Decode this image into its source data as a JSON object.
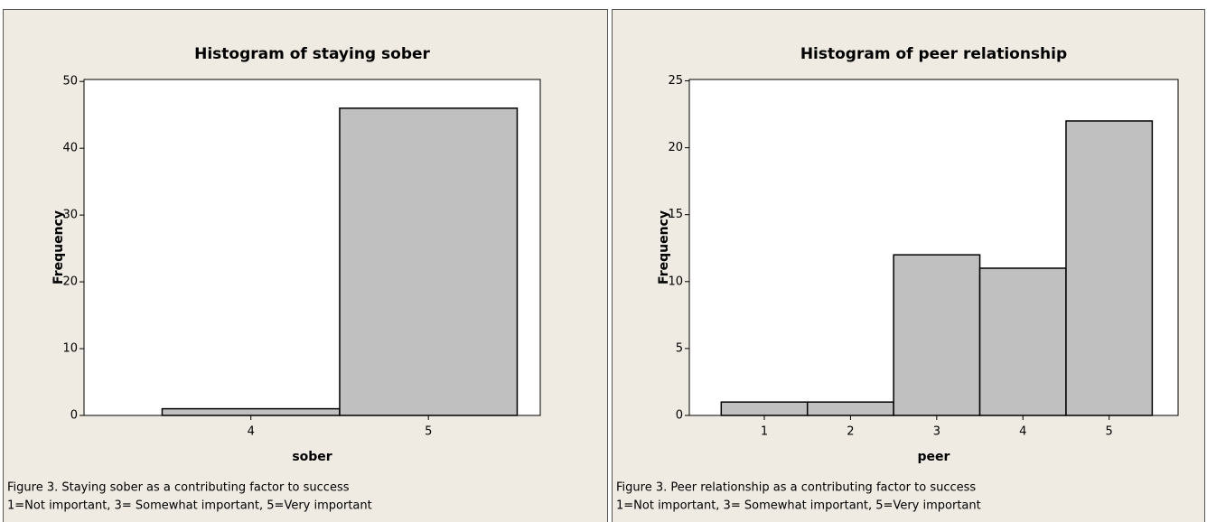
{
  "chart_data": [
    {
      "type": "histogram",
      "title": "Histogram of staying sober",
      "xlabel": "sober",
      "ylabel": "Frequency",
      "bins": [
        3.5,
        4.5,
        5.5
      ],
      "values": [
        1,
        46
      ],
      "color": "#c0c0c0",
      "xlim": [
        3.06,
        5.63
      ],
      "ylim": [
        0,
        50.3
      ],
      "xticks": [
        4,
        5
      ],
      "yticks": [
        0,
        10,
        20,
        30,
        40,
        50
      ],
      "caption": [
        "Figure 3. Staying sober as a contributing factor to success",
        "1=Not important, 3= Somewhat important, 5=Very important"
      ]
    },
    {
      "type": "histogram",
      "title": "Histogram of peer relationship",
      "xlabel": "peer",
      "ylabel": "Frequency",
      "bins": [
        0.5,
        1.5,
        2.5,
        3.5,
        4.5,
        5.5
      ],
      "values": [
        1,
        1,
        12,
        11,
        22
      ],
      "color": "#c0c0c0",
      "xlim": [
        0.13,
        5.8
      ],
      "ylim": [
        0,
        25.1
      ],
      "xticks": [
        1,
        2,
        3,
        4,
        5
      ],
      "yticks": [
        0,
        5,
        10,
        15,
        20,
        25
      ],
      "caption": [
        "Figure 3. Peer relationship as a contributing factor to success",
        "1=Not important, 3= Somewhat important, 5=Very important"
      ]
    }
  ]
}
